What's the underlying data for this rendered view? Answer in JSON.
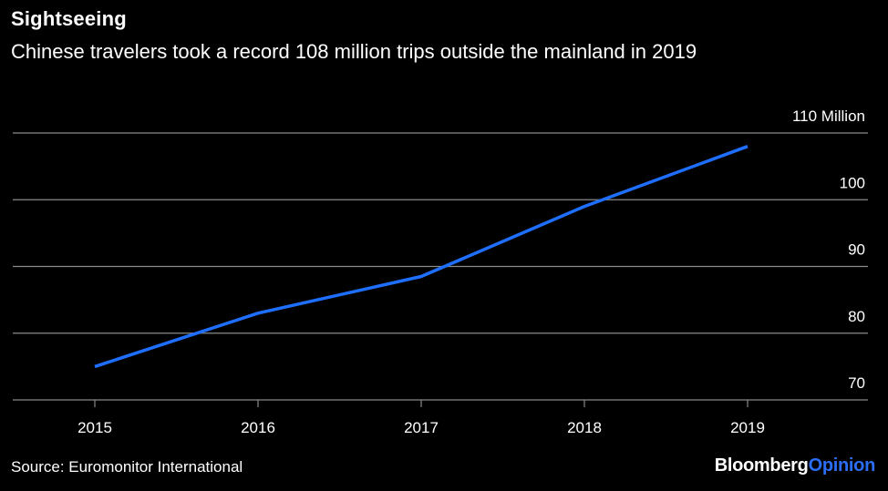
{
  "header": {
    "title": "Sightseeing",
    "subtitle": "Chinese travelers took a record 108 million trips outside the mainland in 2019"
  },
  "footer": {
    "source": "Source: Euromonitor International",
    "brand_main": "Bloomberg",
    "brand_accent": "Opinion"
  },
  "colors": {
    "background": "#000000",
    "line": "#1f6fff",
    "grid": "#8a8a8a",
    "text": "#ffffff",
    "brand_accent": "#2b6ef5"
  },
  "chart_data": {
    "type": "line",
    "title": "Sightseeing",
    "subtitle": "Chinese travelers took a record 108 million trips outside the mainland in 2019",
    "xlabel": "",
    "ylabel": "",
    "categories": [
      "2015",
      "2016",
      "2017",
      "2018",
      "2019"
    ],
    "series": [
      {
        "values": [
          75,
          83,
          88.5,
          99,
          108
        ]
      }
    ],
    "ylim": [
      70,
      110
    ],
    "yticks": [
      70,
      80,
      90,
      100,
      110
    ],
    "ytick_labels": [
      "70",
      "80",
      "90",
      "100",
      "110 Million"
    ],
    "y_axis_side": "right",
    "grid": true,
    "legend": "none"
  }
}
